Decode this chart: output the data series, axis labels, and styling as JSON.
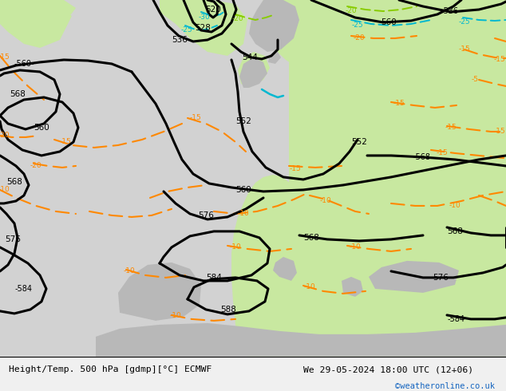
{
  "title_left": "Height/Temp. 500 hPa [gdmp][°C] ECMWF",
  "title_right": "We 29-05-2024 18:00 UTC (12+06)",
  "credit": "©weatheronline.co.uk",
  "bg_gray": "#d2d2d2",
  "green_color": "#c8e8a0",
  "light_green": "#d8f0b0",
  "ocean_color": "#e0e0e0",
  "bottom_bar_color": "#f0f0f0",
  "black_contour_lw": 2.2,
  "orange_color": "#ff8800",
  "cyan_color": "#00b8d0",
  "lgreen_color": "#88cc00",
  "figsize": [
    6.34,
    4.9
  ],
  "dpi": 100
}
